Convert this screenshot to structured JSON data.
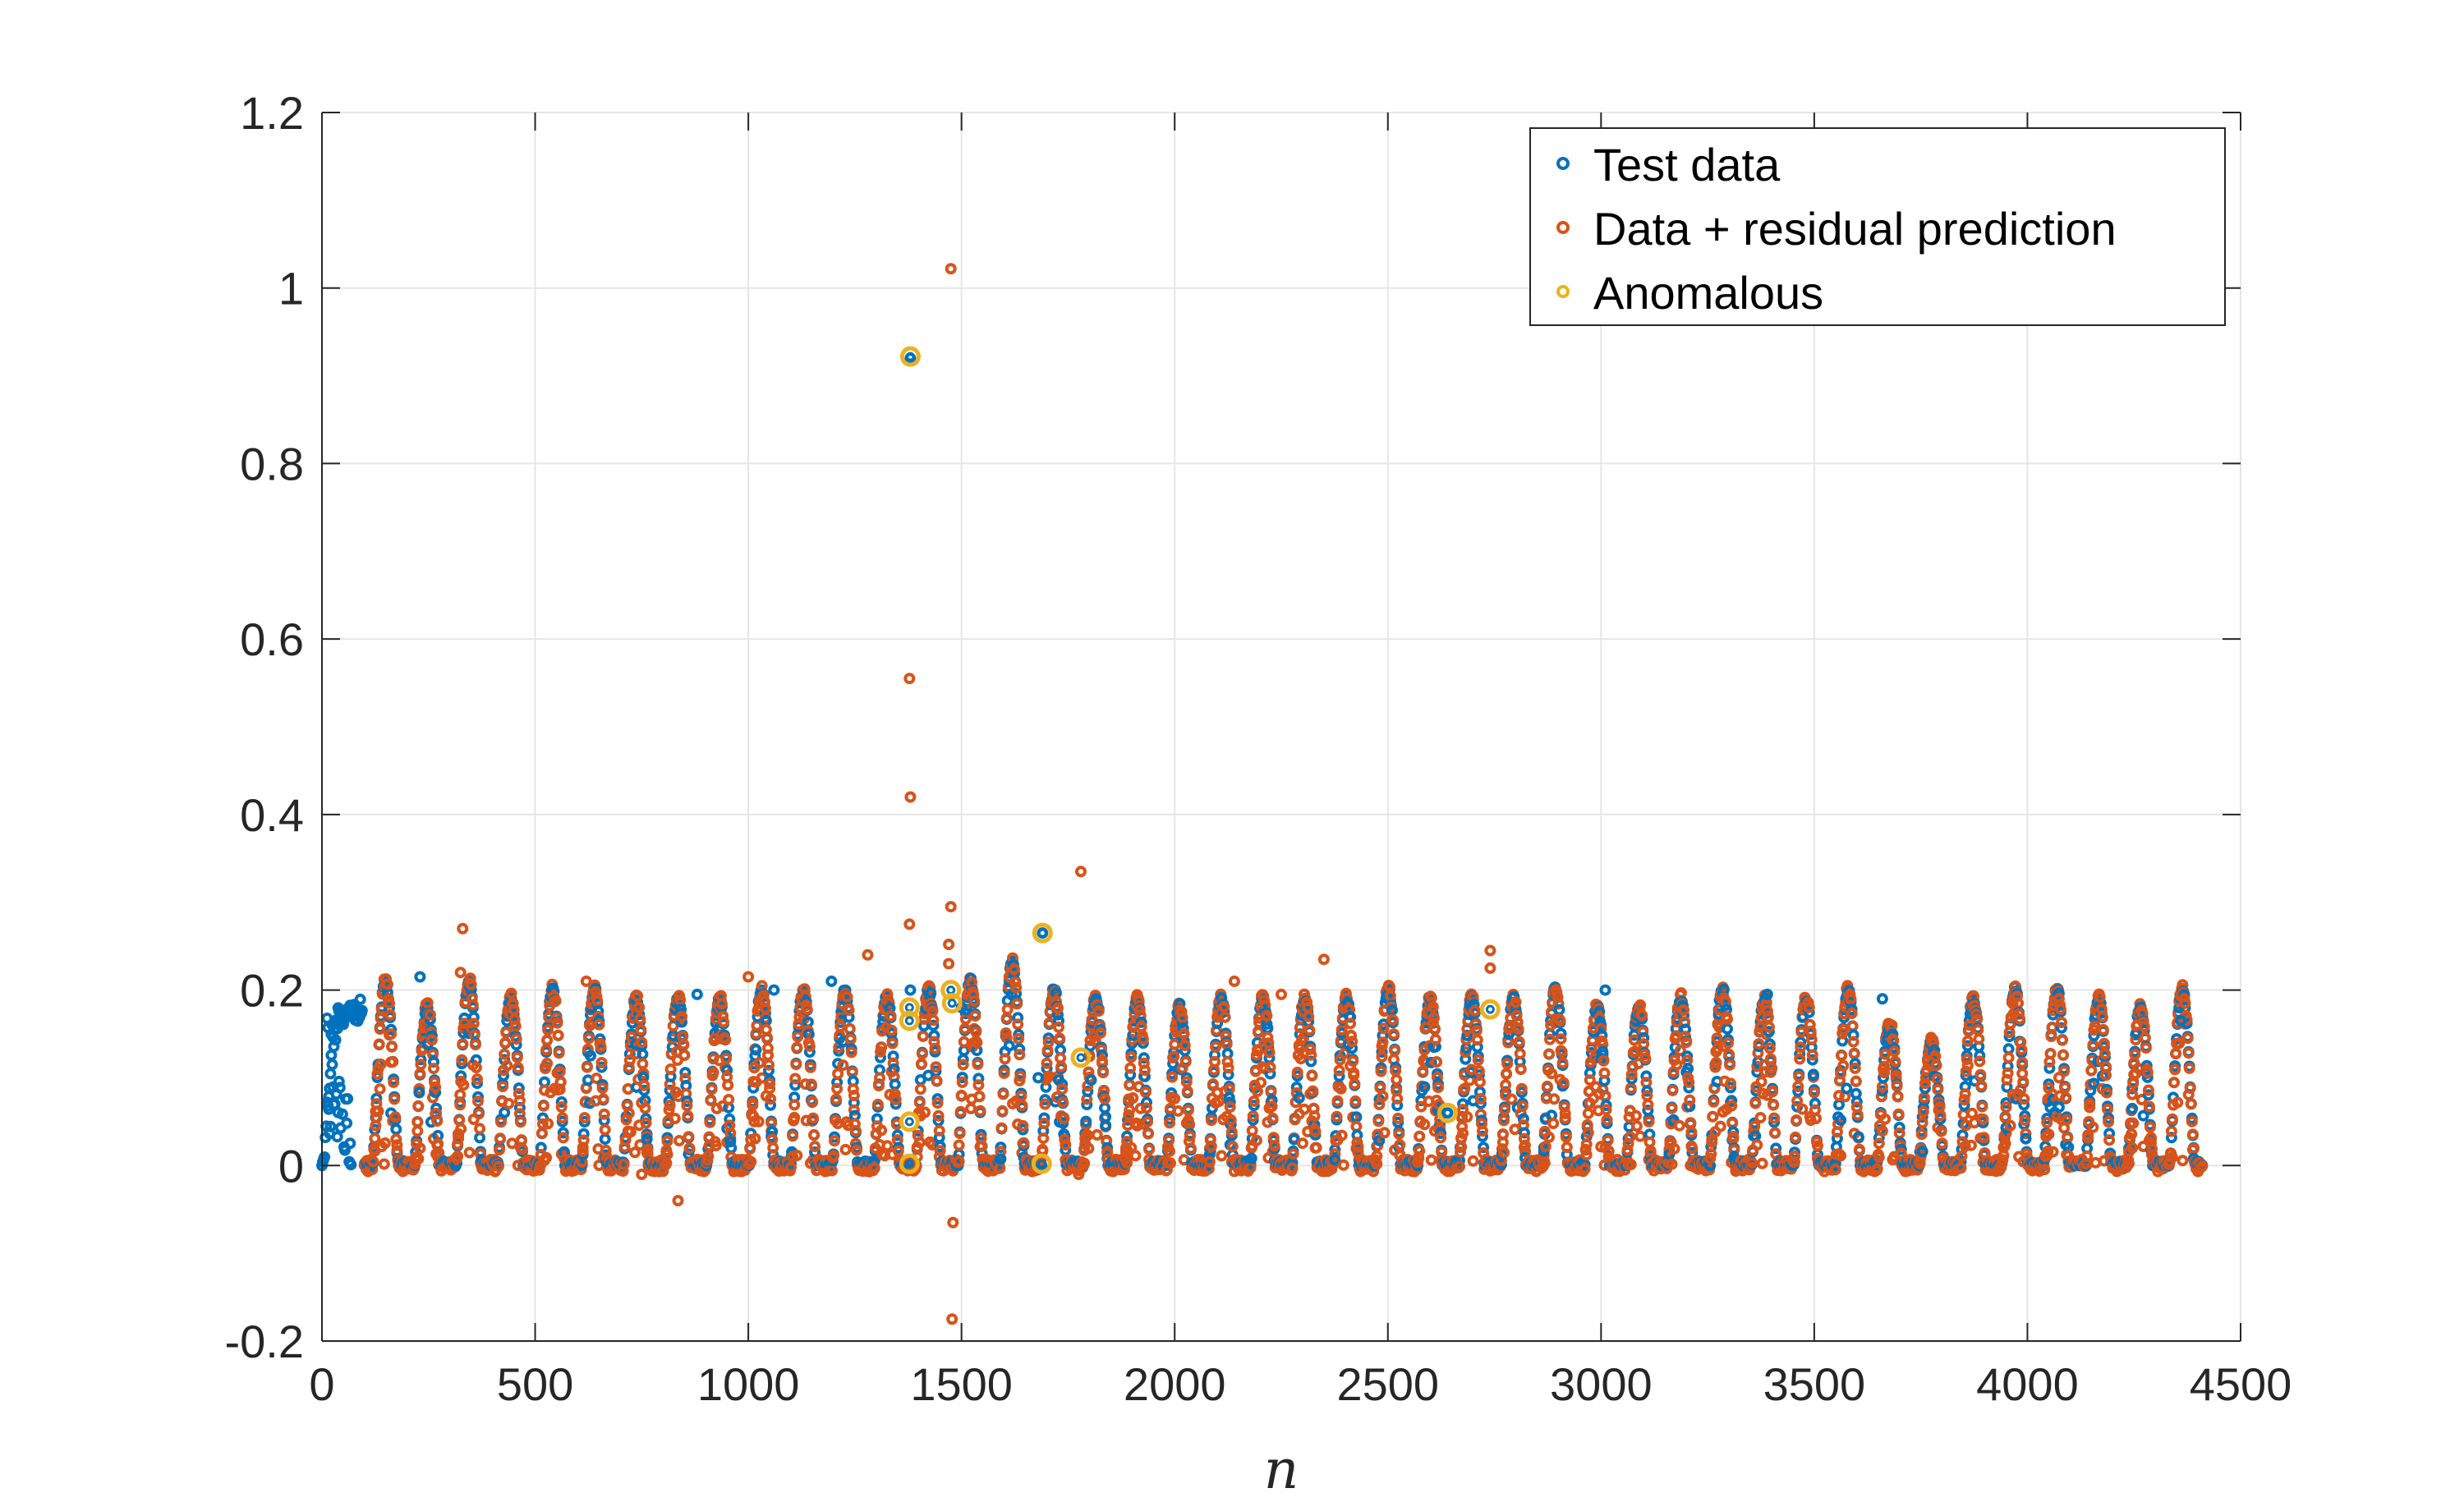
{
  "chart_data": {
    "type": "scatter",
    "title": "",
    "xlabel": "n",
    "ylabel": "",
    "xlim": [
      0,
      4500
    ],
    "ylim": [
      -0.2,
      1.2
    ],
    "xticks": [
      "0",
      "500",
      "1000",
      "1500",
      "2000",
      "2500",
      "3000",
      "3500",
      "4000",
      "4500"
    ],
    "yticks": [
      "-0.2",
      "0",
      "0.2",
      "0.4",
      "0.6",
      "0.8",
      "1",
      "1.2"
    ],
    "grid": true,
    "legend_position": "top-right",
    "cycle": {
      "start": 100,
      "period": 98,
      "peak_fraction": 0.5,
      "width_fraction": 0.6,
      "step": 2,
      "count": 44,
      "peak_heights": [
        0.21,
        0.18,
        0.21,
        0.19,
        0.2,
        0.2,
        0.19,
        0.19,
        0.19,
        0.2,
        0.2,
        0.2,
        0.19,
        0.2,
        0.21,
        0.23,
        0.2,
        0.19,
        0.19,
        0.18,
        0.19,
        0.19,
        0.19,
        0.19,
        0.2,
        0.19,
        0.19,
        0.19,
        0.2,
        0.18,
        0.18,
        0.19,
        0.2,
        0.19,
        0.19,
        0.2,
        0.16,
        0.14,
        0.19,
        0.2,
        0.2,
        0.19,
        0.18,
        0.2
      ]
    },
    "series": [
      {
        "name": "Test data",
        "color": "#0072BD",
        "ramp": {
          "x_start": 0,
          "x_end": 95,
          "step": 2,
          "y_max": 0.19
        },
        "extra_points": [
          [
            230,
            0.215
          ],
          [
            1195,
            0.21
          ],
          [
            1380,
            0.92
          ],
          [
            1380,
            0.2
          ],
          [
            1500,
            0.18
          ],
          [
            1690,
            0.265
          ],
          [
            1680,
            0.1
          ],
          [
            2640,
            0.06
          ],
          [
            3010,
            0.2
          ],
          [
            3390,
            0.195
          ],
          [
            3660,
            0.19
          ],
          [
            4360,
            0.165
          ],
          [
            1060,
            0.2
          ],
          [
            880,
            0.195
          ]
        ]
      },
      {
        "name": "Data + residual prediction",
        "color": "#D95319",
        "extra_points": [
          [
            1475,
            1.022
          ],
          [
            1378,
            0.555
          ],
          [
            1380,
            0.42
          ],
          [
            1378,
            0.275
          ],
          [
            1475,
            0.295
          ],
          [
            1470,
            0.252
          ],
          [
            1470,
            0.23
          ],
          [
            1780,
            0.335
          ],
          [
            330,
            0.27
          ],
          [
            325,
            0.22
          ],
          [
            2740,
            0.245
          ],
          [
            2740,
            0.225
          ],
          [
            2350,
            0.235
          ],
          [
            2140,
            0.21
          ],
          [
            2250,
            0.195
          ],
          [
            4170,
            0.192
          ],
          [
            1280,
            0.24
          ],
          [
            835,
            -0.04
          ],
          [
            1480,
            -0.065
          ],
          [
            1478,
            -0.175
          ],
          [
            1775,
            -0.01
          ],
          [
            750,
            -0.01
          ],
          [
            1000,
            0.215
          ],
          [
            620,
            0.21
          ]
        ]
      },
      {
        "name": "Anomalous",
        "color": "#EDB120",
        "points": [
          [
            1380,
            0.922
          ],
          [
            1690,
            0.265
          ],
          [
            1378,
            0.18
          ],
          [
            1378,
            0.165
          ],
          [
            1475,
            0.2
          ],
          [
            1478,
            0.185
          ],
          [
            1780,
            0.123
          ],
          [
            2740,
            0.178
          ],
          [
            2640,
            0.06
          ],
          [
            1378,
            0.05
          ],
          [
            1378,
            0.002
          ],
          [
            1688,
            0.002
          ]
        ]
      }
    ]
  }
}
